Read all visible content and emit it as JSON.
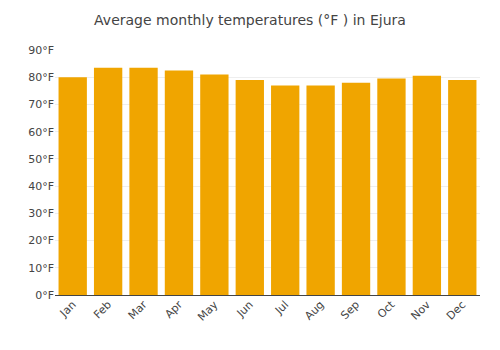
{
  "chart_data": {
    "type": "bar",
    "title": "Average monthly temperatures (°F ) in Ejura",
    "categories": [
      "Jan",
      "Feb",
      "Mar",
      "Apr",
      "May",
      "Jun",
      "Jul",
      "Aug",
      "Sep",
      "Oct",
      "Nov",
      "Dec"
    ],
    "values": [
      80,
      83.5,
      83.5,
      82.5,
      81,
      79,
      77,
      77,
      78,
      79.5,
      80.5,
      79
    ],
    "color": "#F0A500",
    "ylim": [
      0,
      90
    ],
    "yticks": [
      {
        "value": 0,
        "label": "0°F"
      },
      {
        "value": 10,
        "label": "10°F"
      },
      {
        "value": 20,
        "label": "20°F"
      },
      {
        "value": 30,
        "label": "30°F"
      },
      {
        "value": 40,
        "label": "40°F"
      },
      {
        "value": 50,
        "label": "50°F"
      },
      {
        "value": 60,
        "label": "60°F"
      },
      {
        "value": 70,
        "label": "70°F"
      },
      {
        "value": 80,
        "label": "80°F"
      },
      {
        "value": 90,
        "label": "90°F"
      }
    ],
    "grid": true
  }
}
